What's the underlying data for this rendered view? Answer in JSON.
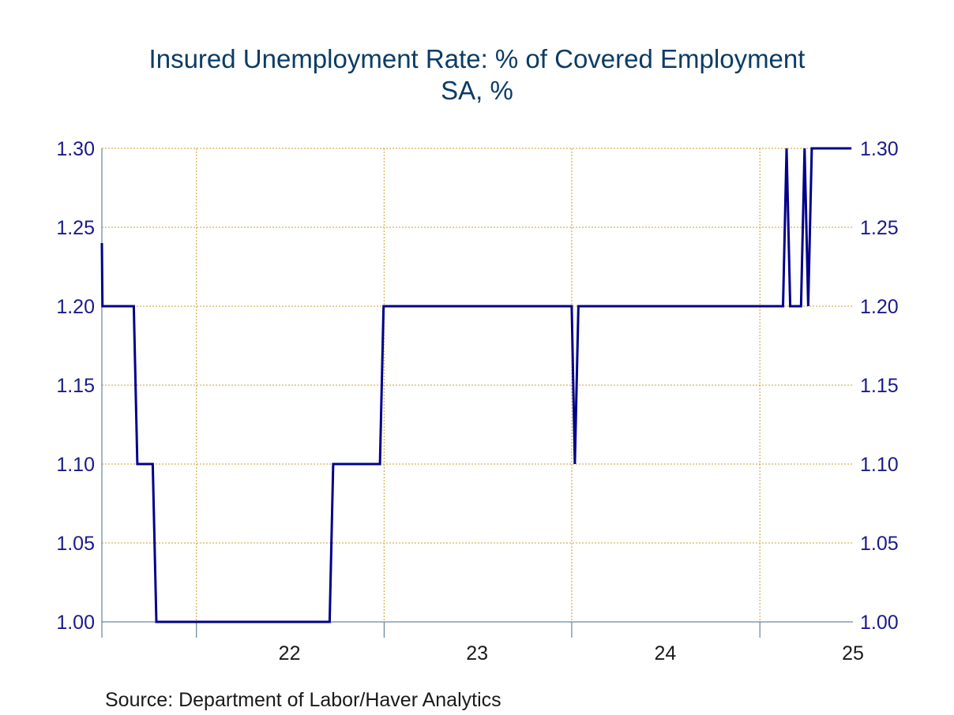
{
  "chart_data": {
    "type": "line",
    "title": "Insured Unemployment Rate: % of Covered Employment",
    "subtitle": "SA, %",
    "source": "Source:  Department of Labor/Haver Analytics",
    "ylim": [
      1.0,
      1.3
    ],
    "yticks": [
      "1.30",
      "1.25",
      "1.20",
      "1.15",
      "1.10",
      "1.05",
      "1.00"
    ],
    "xlim": [
      "2021-07-01",
      "2025-07-01"
    ],
    "xtick_labels": [
      {
        "label": "22",
        "at": "2022-07-01"
      },
      {
        "label": "23",
        "at": "2023-07-01"
      },
      {
        "label": "24",
        "at": "2024-07-01"
      },
      {
        "label": "25",
        "at": "2025-07-01"
      }
    ],
    "x_boundaries": [
      "2022-01-01",
      "2023-01-01",
      "2024-01-01",
      "2025-01-01"
    ],
    "grid": true,
    "line_color": "#00008b",
    "grid_color": "#c8a028",
    "series": [
      {
        "points": [
          [
            "2021-07-01",
            1.24
          ],
          [
            "2021-07-02",
            1.2
          ],
          [
            "2021-09-01",
            1.2
          ],
          [
            "2021-09-08",
            1.1
          ],
          [
            "2021-10-08",
            1.1
          ],
          [
            "2021-10-15",
            1.0
          ],
          [
            "2022-09-17",
            1.0
          ],
          [
            "2022-09-24",
            1.1
          ],
          [
            "2022-12-24",
            1.1
          ],
          [
            "2022-12-31",
            1.2
          ],
          [
            "2024-01-01",
            1.2
          ],
          [
            "2024-01-07",
            1.1
          ],
          [
            "2024-01-14",
            1.2
          ],
          [
            "2025-02-15",
            1.2
          ],
          [
            "2025-02-22",
            1.3
          ],
          [
            "2025-03-01",
            1.2
          ],
          [
            "2025-03-22",
            1.2
          ],
          [
            "2025-03-29",
            1.3
          ],
          [
            "2025-04-05",
            1.2
          ],
          [
            "2025-04-12",
            1.3
          ],
          [
            "2025-06-28",
            1.3
          ]
        ]
      }
    ]
  }
}
